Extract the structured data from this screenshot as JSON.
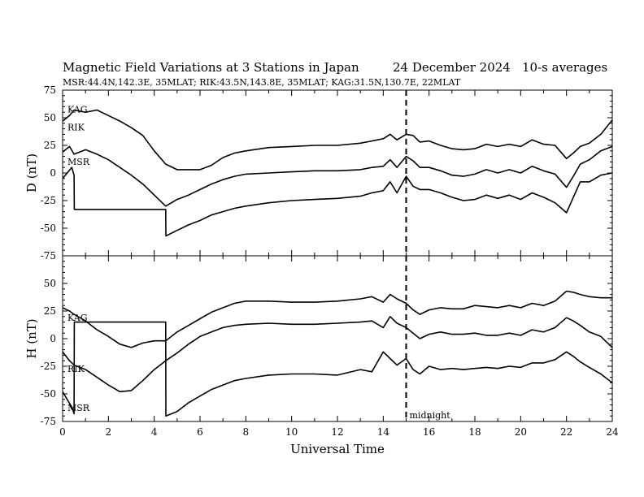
{
  "header": {
    "title": "Magnetic Field Variations at 3 Stations in Japan",
    "date": "24 December 2024",
    "averaging": "10-s averages",
    "stations_line": "MSR:44.4N,142.3E, 35MLAT;  RIK:43.5N,143.8E, 35MLAT;  KAG:31.5N,130.7E, 22MLAT"
  },
  "annotations": {
    "midnight": "midnight"
  },
  "chart_data": [
    {
      "type": "line",
      "panel": "top",
      "ylabel": "D (nT)",
      "xlim": [
        0,
        24
      ],
      "ylim": [
        -75,
        75
      ],
      "yticks": [
        75,
        50,
        25,
        0,
        -25,
        -50,
        -75
      ],
      "ytick_labels": [
        "75",
        "50",
        "25",
        "0",
        "-25",
        "-50",
        "-75"
      ],
      "series": [
        {
          "name": "KAG",
          "x": [
            0,
            0.3,
            0.5,
            1,
            1.5,
            2,
            2.5,
            3,
            3.5,
            4,
            4.5,
            5,
            5.5,
            6,
            6.5,
            7,
            7.5,
            8,
            9,
            10,
            11,
            12,
            13,
            13.5,
            14,
            14.3,
            14.6,
            15,
            15.3,
            15.6,
            16,
            16.5,
            17,
            17.5,
            18,
            18.5,
            19,
            19.5,
            20,
            20.5,
            21,
            21.5,
            22,
            22.3,
            22.6,
            23,
            23.5,
            24
          ],
          "values": [
            47,
            52,
            57,
            55,
            57,
            52,
            47,
            41,
            34,
            20,
            8,
            3,
            3,
            3,
            7,
            14,
            18,
            20,
            23,
            24,
            25,
            25,
            27,
            29,
            31,
            35,
            30,
            35,
            34,
            28,
            29,
            25,
            22,
            21,
            22,
            26,
            24,
            26,
            24,
            30,
            26,
            25,
            13,
            18,
            24,
            27,
            35,
            48
          ]
        },
        {
          "name": "RIK",
          "x": [
            0,
            0.3,
            0.5,
            1,
            1.5,
            2,
            2.5,
            3,
            3.5,
            4,
            4.5,
            5,
            5.5,
            6,
            6.5,
            7,
            7.5,
            8,
            9,
            10,
            11,
            12,
            13,
            13.5,
            14,
            14.3,
            14.6,
            15,
            15.3,
            15.6,
            16,
            16.5,
            17,
            17.5,
            18,
            18.5,
            19,
            19.5,
            20,
            20.5,
            21,
            21.5,
            22,
            22.3,
            22.6,
            23,
            23.5,
            24
          ],
          "values": [
            19,
            24,
            17,
            21,
            17,
            12,
            5,
            -2,
            -10,
            -20,
            -30,
            -24,
            -20,
            -15,
            -10,
            -6,
            -3,
            -1,
            0,
            1,
            2,
            2,
            3,
            5,
            6,
            12,
            5,
            15,
            11,
            5,
            5,
            2,
            -2,
            -3,
            -1,
            3,
            0,
            3,
            0,
            6,
            2,
            -1,
            -13,
            -3,
            8,
            12,
            20,
            24
          ]
        },
        {
          "name": "MSR",
          "x": [
            0,
            0.2,
            0.4,
            0.5,
            0.51,
            4.5,
            4.51,
            5,
            5.5,
            6,
            6.5,
            7,
            7.5,
            8,
            9,
            10,
            11,
            12,
            13,
            13.5,
            14,
            14.3,
            14.6,
            15,
            15.3,
            15.6,
            16,
            16.5,
            17,
            17.5,
            18,
            18.5,
            19,
            19.5,
            20,
            20.5,
            21,
            21.5,
            22,
            22.3,
            22.6,
            23,
            23.5,
            24
          ],
          "values": [
            -5,
            0,
            5,
            -2,
            -33,
            -33,
            -57,
            -52,
            -47,
            -43,
            -38,
            -35,
            -32,
            -30,
            -27,
            -25,
            -24,
            -23,
            -21,
            -18,
            -16,
            -8,
            -18,
            -3,
            -12,
            -15,
            -15,
            -18,
            -22,
            -25,
            -24,
            -20,
            -23,
            -20,
            -24,
            -18,
            -22,
            -27,
            -36,
            -22,
            -8,
            -8,
            -2,
            0
          ]
        }
      ]
    },
    {
      "type": "line",
      "panel": "bottom",
      "ylabel": "H (nT)",
      "xlabel": "Universal Time",
      "xlim": [
        0,
        24
      ],
      "ylim": [
        -75,
        75
      ],
      "xticks": [
        0,
        2,
        4,
        6,
        8,
        10,
        12,
        14,
        16,
        18,
        20,
        22,
        24
      ],
      "xtick_labels": [
        "0",
        "2",
        "4",
        "6",
        "8",
        "10",
        "12",
        "14",
        "16",
        "18",
        "20",
        "22",
        "24"
      ],
      "yticks": [
        50,
        25,
        0,
        -25,
        -50,
        -75
      ],
      "ytick_labels": [
        "50",
        "25",
        "0",
        "-25",
        "-50",
        "-75"
      ],
      "series": [
        {
          "name": "KAG",
          "x": [
            0,
            0.3,
            0.5,
            1,
            1.5,
            2,
            2.5,
            3,
            3.5,
            4,
            4.5,
            5,
            5.5,
            6,
            6.5,
            7,
            7.5,
            8,
            9,
            10,
            11,
            12,
            13,
            13.5,
            14,
            14.3,
            14.6,
            15,
            15.3,
            15.6,
            16,
            16.5,
            17,
            17.5,
            18,
            18.5,
            19,
            19.5,
            20,
            20.5,
            21,
            21.5,
            22,
            22.3,
            22.6,
            23,
            23.5,
            24
          ],
          "values": [
            28,
            25,
            22,
            16,
            8,
            2,
            -5,
            -8,
            -4,
            -2,
            -2,
            6,
            12,
            18,
            24,
            28,
            32,
            34,
            34,
            33,
            33,
            34,
            36,
            38,
            33,
            40,
            36,
            32,
            26,
            22,
            26,
            28,
            27,
            27,
            30,
            29,
            28,
            30,
            28,
            32,
            30,
            34,
            43,
            42,
            40,
            38,
            37,
            37
          ]
        },
        {
          "name": "RIK",
          "x": [
            0,
            0.3,
            0.5,
            1,
            1.5,
            2,
            2.5,
            3,
            3.5,
            4,
            4.5,
            5,
            5.5,
            6,
            6.5,
            7,
            7.5,
            8,
            9,
            10,
            11,
            12,
            13,
            13.5,
            14,
            14.3,
            14.6,
            15,
            15.3,
            15.6,
            16,
            16.5,
            17,
            17.5,
            18,
            18.5,
            19,
            19.5,
            20,
            20.5,
            21,
            21.5,
            22,
            22.3,
            22.6,
            23,
            23.5,
            24
          ],
          "values": [
            -12,
            -20,
            -24,
            -28,
            -35,
            -42,
            -48,
            -47,
            -38,
            -28,
            -20,
            -13,
            -5,
            2,
            6,
            10,
            12,
            13,
            14,
            13,
            13,
            14,
            15,
            16,
            10,
            20,
            14,
            10,
            5,
            0,
            4,
            6,
            4,
            4,
            5,
            3,
            3,
            5,
            3,
            8,
            6,
            10,
            19,
            16,
            12,
            6,
            2,
            -8
          ]
        },
        {
          "name": "MSR",
          "x": [
            0,
            0.2,
            0.4,
            0.5,
            0.51,
            4.5,
            4.51,
            5,
            5.5,
            6,
            6.5,
            7,
            7.5,
            8,
            9,
            10,
            11,
            12,
            13,
            13.5,
            14,
            14.3,
            14.6,
            15,
            15.3,
            15.6,
            16,
            16.5,
            17,
            17.5,
            18,
            18.5,
            19,
            19.5,
            20,
            20.5,
            21,
            21.5,
            22,
            22.3,
            22.6,
            23,
            23.5,
            24
          ],
          "values": [
            -48,
            -55,
            -62,
            -68,
            15,
            15,
            -70,
            -66,
            -58,
            -52,
            -46,
            -42,
            -38,
            -36,
            -33,
            -32,
            -32,
            -33,
            -28,
            -30,
            -12,
            -18,
            -24,
            -18,
            -28,
            -32,
            -25,
            -28,
            -27,
            -28,
            -27,
            -26,
            -27,
            -25,
            -26,
            -22,
            -22,
            -19,
            -12,
            -16,
            -21,
            -26,
            -32,
            -40
          ]
        }
      ]
    }
  ]
}
